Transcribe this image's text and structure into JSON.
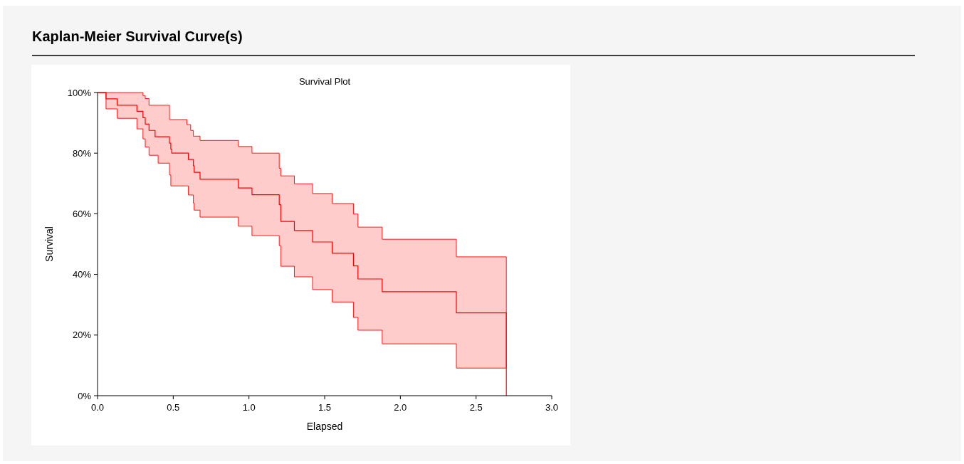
{
  "chart_data": {
    "type": "step",
    "title": "Kaplan-Meier Survival Curve(s)",
    "subtitle": "Survival Plot",
    "xlabel": "Elapsed",
    "ylabel": "Survival",
    "x": [
      0,
      0.056,
      0.13,
      0.26,
      0.3,
      0.315,
      0.34,
      0.38,
      0.4,
      0.475,
      0.484,
      0.49,
      0.59,
      0.6,
      0.615,
      0.633,
      0.638,
      0.677,
      0.93,
      1.02,
      1.2,
      1.21,
      1.3,
      1.42,
      1.55,
      1.69,
      1.72,
      1.88,
      2.37,
      2.7
    ],
    "series": [
      {
        "color": "#ff0000",
        "values": [
          100,
          97.9,
          95.8,
          93.8,
          91.7,
          89.6,
          87.5,
          85.4,
          85.4,
          83.3,
          81.3,
          80,
          80,
          77.9,
          77.9,
          75.8,
          73.7,
          71.4,
          68.5,
          66.3,
          63,
          57.5,
          54.5,
          50.7,
          47,
          42.8,
          38.5,
          34.3,
          27.3,
          0
        ],
        "upper": [
          100,
          100,
          100,
          100,
          99,
          98,
          95.8,
          95.8,
          95.8,
          91.1,
          91.1,
          91.1,
          89.4,
          89.4,
          87.5,
          85.6,
          85.6,
          84.2,
          82.2,
          80,
          75,
          72.5,
          69.9,
          66.7,
          63.4,
          59.9,
          55.6,
          51.6,
          45.8,
          45.8
        ],
        "lower": [
          100,
          94.6,
          91.5,
          88,
          84.7,
          82,
          79.3,
          79.3,
          76.7,
          72.8,
          69.2,
          69.2,
          69.2,
          66.2,
          66.2,
          63.5,
          61.2,
          58.9,
          55.9,
          52.8,
          49.5,
          42.7,
          39.2,
          35,
          30.9,
          25.8,
          21.6,
          17.1,
          9.1,
          9.1
        ]
      }
    ],
    "xlim": [
      0,
      3
    ],
    "xticks": [
      {
        "value": 0,
        "label": "0.0"
      },
      {
        "value": 0.5,
        "label": "0.5"
      },
      {
        "value": 1,
        "label": "1.0"
      },
      {
        "value": 1.5,
        "label": "1.5"
      },
      {
        "value": 2,
        "label": "2.0"
      },
      {
        "value": 2.5,
        "label": "2.5"
      },
      {
        "value": 3,
        "label": "3.0"
      }
    ],
    "ylim": [
      0,
      100
    ],
    "yticks": [
      {
        "value": 0,
        "label": "0%"
      },
      {
        "value": 20,
        "label": "20%"
      },
      {
        "value": 40,
        "label": "40%"
      },
      {
        "value": 60,
        "label": "60%"
      },
      {
        "value": 80,
        "label": "80%"
      },
      {
        "value": 100,
        "label": "100%"
      }
    ],
    "grid": false
  }
}
